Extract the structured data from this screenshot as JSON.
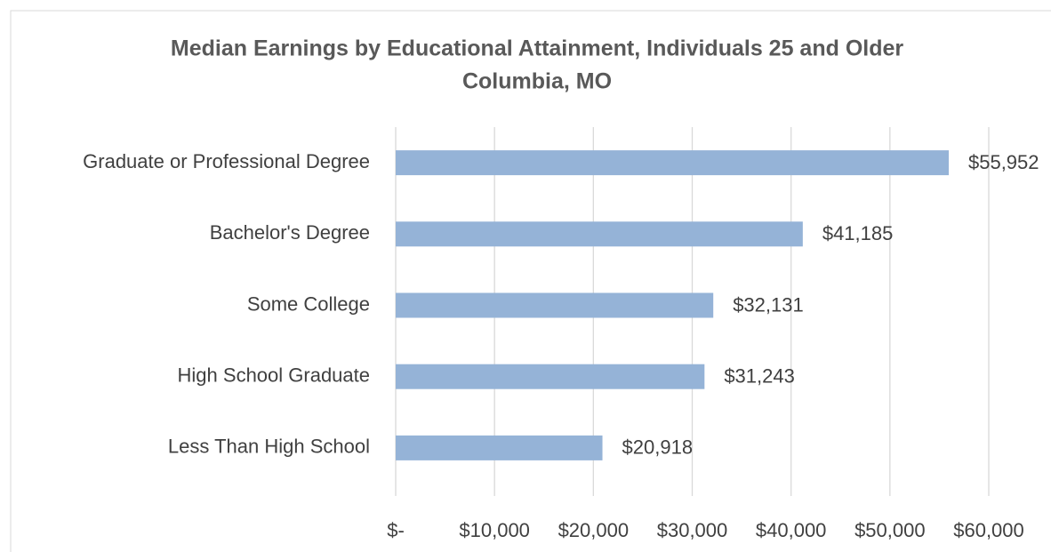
{
  "chart_data": {
    "type": "barh",
    "title": "Median Earnings by Educational Attainment, Individuals 25 and Older",
    "subtitle": "Columbia, MO",
    "categories": [
      "Graduate or Professional Degree",
      "Bachelor's Degree",
      "Some College",
      "High School Graduate",
      "Less Than High School"
    ],
    "values": [
      55952,
      41185,
      32131,
      31243,
      20918
    ],
    "value_labels": [
      "$55,952",
      "$41,185",
      "$32,131",
      "$31,243",
      "$20,918"
    ],
    "color": "#95b3d7",
    "xlim": [
      0,
      60000
    ],
    "xticks": [
      {
        "value": 0,
        "label": "$-"
      },
      {
        "value": 10000,
        "label": "$10,000"
      },
      {
        "value": 20000,
        "label": "$20,000"
      },
      {
        "value": 30000,
        "label": "$30,000"
      },
      {
        "value": 40000,
        "label": "$40,000"
      },
      {
        "value": 50000,
        "label": "$50,000"
      },
      {
        "value": 60000,
        "label": "$60,000"
      }
    ],
    "grid": true
  }
}
